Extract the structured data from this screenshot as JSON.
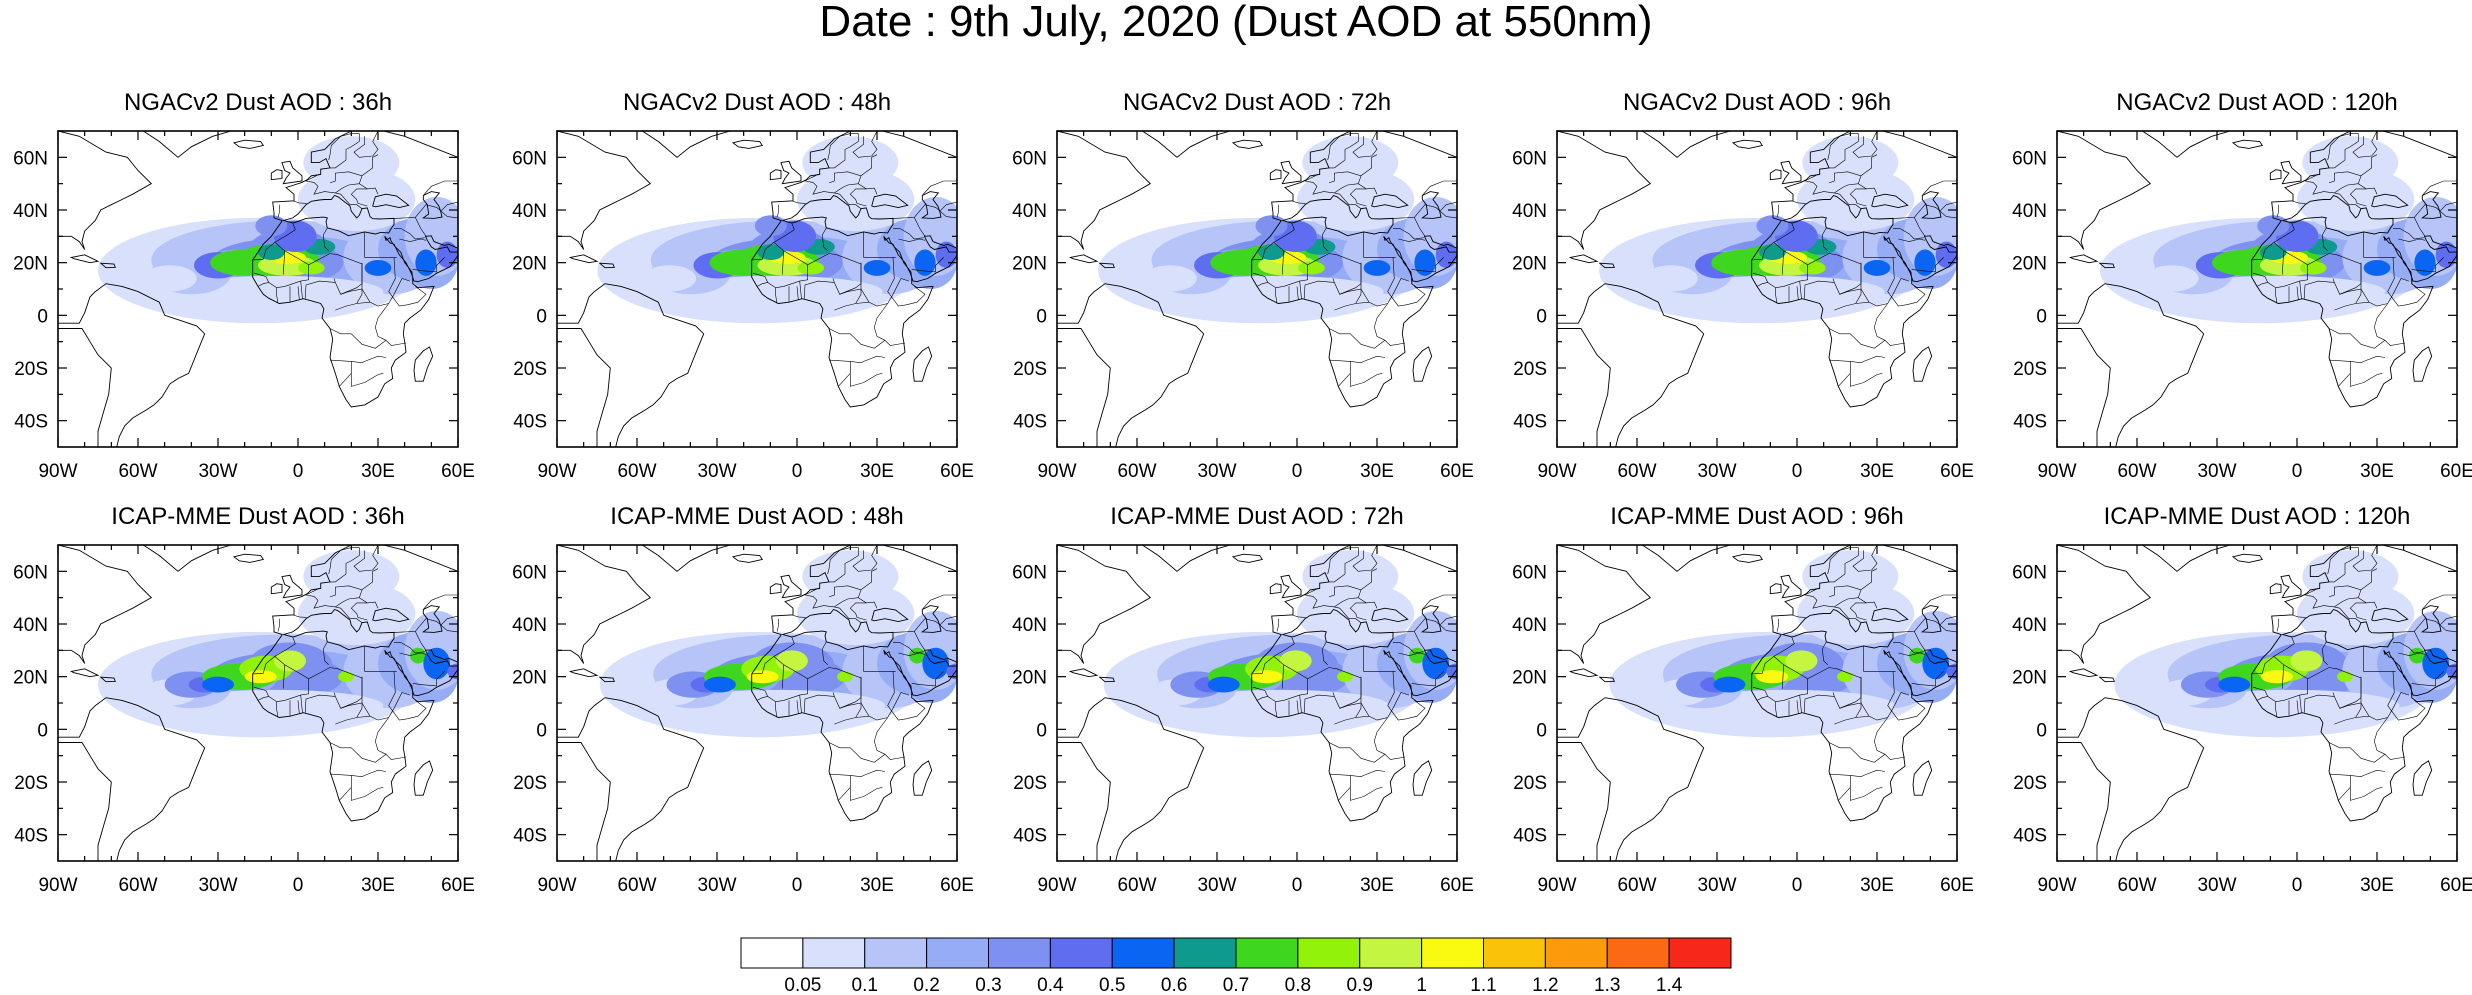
{
  "title": "Date : 9th July, 2020 (Dust AOD at 550nm)",
  "lon_labels": [
    "90W",
    "60W",
    "30W",
    "0",
    "30E",
    "60E"
  ],
  "lat_labels": [
    "60N",
    "40N",
    "20N",
    "0",
    "20S",
    "40S"
  ],
  "map_extent": {
    "lon": [
      -90,
      60
    ],
    "lat": [
      -50,
      70
    ]
  },
  "panels": [
    {
      "row": 0,
      "col": 0,
      "title": "NGACv2 Dust AOD : 36h",
      "model": "NGACv2",
      "lead_hours": 36
    },
    {
      "row": 0,
      "col": 1,
      "title": "NGACv2 Dust AOD : 48h",
      "model": "NGACv2",
      "lead_hours": 48
    },
    {
      "row": 0,
      "col": 2,
      "title": "NGACv2 Dust AOD : 72h",
      "model": "NGACv2",
      "lead_hours": 72
    },
    {
      "row": 0,
      "col": 3,
      "title": "NGACv2 Dust AOD : 96h",
      "model": "NGACv2",
      "lead_hours": 96
    },
    {
      "row": 0,
      "col": 4,
      "title": "NGACv2 Dust AOD : 120h",
      "model": "NGACv2",
      "lead_hours": 120
    },
    {
      "row": 1,
      "col": 0,
      "title": "ICAP-MME Dust AOD : 36h",
      "model": "ICAP-MME",
      "lead_hours": 36
    },
    {
      "row": 1,
      "col": 1,
      "title": "ICAP-MME Dust AOD : 48h",
      "model": "ICAP-MME",
      "lead_hours": 48
    },
    {
      "row": 1,
      "col": 2,
      "title": "ICAP-MME Dust AOD : 72h",
      "model": "ICAP-MME",
      "lead_hours": 72
    },
    {
      "row": 1,
      "col": 3,
      "title": "ICAP-MME Dust AOD : 96h",
      "model": "ICAP-MME",
      "lead_hours": 96
    },
    {
      "row": 1,
      "col": 4,
      "title": "ICAP-MME Dust AOD : 120h",
      "model": "ICAP-MME",
      "lead_hours": 120
    }
  ],
  "colorbar": {
    "boundaries": [
      "0.05",
      "0.1",
      "0.2",
      "0.3",
      "0.4",
      "0.5",
      "0.6",
      "0.7",
      "0.8",
      "0.9",
      "1",
      "1.1",
      "1.2",
      "1.3",
      "1.4"
    ],
    "colors": [
      "#ffffff",
      "#d8e0fb",
      "#b6c4f8",
      "#96acf5",
      "#7f91f0",
      "#5f6df0",
      "#0a66f2",
      "#0e9a8c",
      "#3ed61e",
      "#92f20a",
      "#c4f540",
      "#fafa10",
      "#fbc20a",
      "#fb9a0a",
      "#fb6a12",
      "#f7281a"
    ]
  }
}
